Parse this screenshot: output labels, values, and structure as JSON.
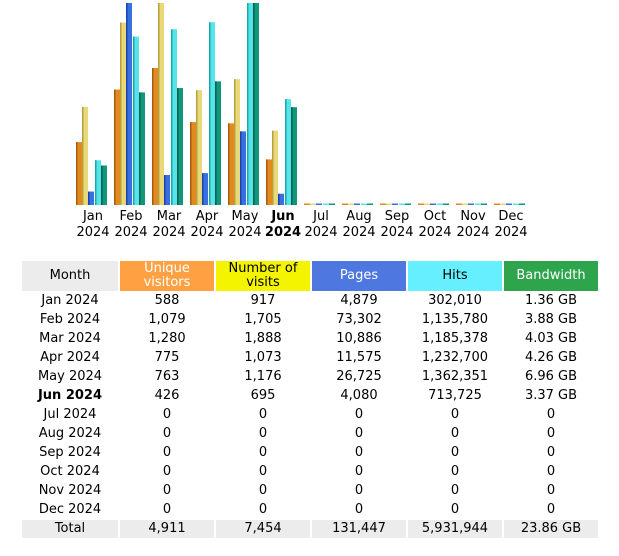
{
  "chart_data": {
    "type": "bar",
    "categories": [
      "Jan 2024",
      "Feb 2024",
      "Mar 2024",
      "Apr 2024",
      "May 2024",
      "Jun 2024",
      "Jul 2024",
      "Aug 2024",
      "Sep 2024",
      "Oct 2024",
      "Nov 2024",
      "Dec 2024"
    ],
    "current_category": "Jun 2024",
    "series": [
      {
        "name": "Unique visitors",
        "color": "#e08a20",
        "values": [
          588,
          1079,
          1280,
          775,
          763,
          426,
          0,
          0,
          0,
          0,
          0,
          0
        ]
      },
      {
        "name": "Number of visits",
        "color": "#e8d878",
        "values": [
          917,
          1705,
          1888,
          1073,
          1176,
          695,
          0,
          0,
          0,
          0,
          0,
          0
        ]
      },
      {
        "name": "Pages",
        "color": "#3a6fe0",
        "values": [
          4879,
          73302,
          10886,
          11575,
          26725,
          4080,
          0,
          0,
          0,
          0,
          0,
          0
        ]
      },
      {
        "name": "Hits",
        "color": "#55e4e8",
        "values": [
          302010,
          1135780,
          1185378,
          1232700,
          1362351,
          713725,
          0,
          0,
          0,
          0,
          0,
          0
        ]
      },
      {
        "name": "Bandwidth",
        "color": "#12967a",
        "values_gb": [
          1.36,
          3.88,
          4.03,
          4.26,
          6.96,
          3.37,
          0,
          0,
          0,
          0,
          0,
          0
        ]
      }
    ]
  },
  "table": {
    "headers": {
      "month": "Month",
      "unique_visitors": "Unique visitors",
      "visits": "Number of visits",
      "pages": "Pages",
      "hits": "Hits",
      "bandwidth": "Bandwidth"
    },
    "rows": [
      {
        "month": "Jan 2024",
        "uv": "588",
        "visits": "917",
        "pages": "4,879",
        "hits": "302,010",
        "bw": "1.36 GB"
      },
      {
        "month": "Feb 2024",
        "uv": "1,079",
        "visits": "1,705",
        "pages": "73,302",
        "hits": "1,135,780",
        "bw": "3.88 GB"
      },
      {
        "month": "Mar 2024",
        "uv": "1,280",
        "visits": "1,888",
        "pages": "10,886",
        "hits": "1,185,378",
        "bw": "4.03 GB"
      },
      {
        "month": "Apr 2024",
        "uv": "775",
        "visits": "1,073",
        "pages": "11,575",
        "hits": "1,232,700",
        "bw": "4.26 GB"
      },
      {
        "month": "May 2024",
        "uv": "763",
        "visits": "1,176",
        "pages": "26,725",
        "hits": "1,362,351",
        "bw": "6.96 GB"
      },
      {
        "month": "Jun 2024",
        "uv": "426",
        "visits": "695",
        "pages": "4,080",
        "hits": "713,725",
        "bw": "3.37 GB",
        "current": true
      },
      {
        "month": "Jul 2024",
        "uv": "0",
        "visits": "0",
        "pages": "0",
        "hits": "0",
        "bw": "0"
      },
      {
        "month": "Aug 2024",
        "uv": "0",
        "visits": "0",
        "pages": "0",
        "hits": "0",
        "bw": "0"
      },
      {
        "month": "Sep 2024",
        "uv": "0",
        "visits": "0",
        "pages": "0",
        "hits": "0",
        "bw": "0"
      },
      {
        "month": "Oct 2024",
        "uv": "0",
        "visits": "0",
        "pages": "0",
        "hits": "0",
        "bw": "0"
      },
      {
        "month": "Nov 2024",
        "uv": "0",
        "visits": "0",
        "pages": "0",
        "hits": "0",
        "bw": "0"
      },
      {
        "month": "Dec 2024",
        "uv": "0",
        "visits": "0",
        "pages": "0",
        "hits": "0",
        "bw": "0"
      }
    ],
    "total": {
      "month": "Total",
      "uv": "4,911",
      "visits": "7,454",
      "pages": "131,447",
      "hits": "5,931,944",
      "bw": "23.86 GB"
    }
  }
}
